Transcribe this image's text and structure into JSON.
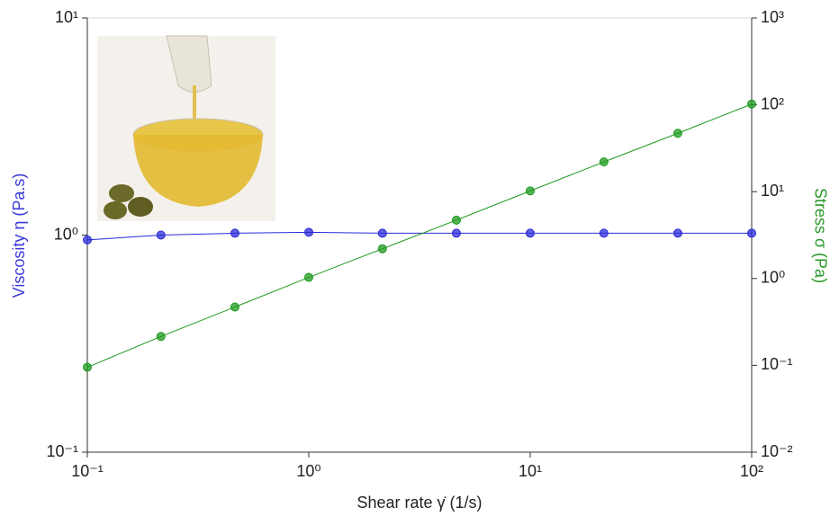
{
  "chart_data": {
    "type": "line",
    "xlabel": "Shear rate γ̇ (1/s)",
    "ylabel": "Viscosity η (Pa.s)",
    "y2label": "Stress σ (Pa)",
    "x": [
      0.1,
      0.215,
      0.464,
      1,
      2.15,
      4.64,
      10,
      21.5,
      46.4,
      100
    ],
    "series": [
      {
        "color": "#2a2ad8",
        "values": [
          0.95,
          1.0,
          1.02,
          1.03,
          1.02,
          1.02,
          1.02,
          1.02,
          1.02,
          1.02
        ]
      },
      {
        "color": "#1e9a1e",
        "axis": "y2",
        "values": [
          0.095,
          0.215,
          0.47,
          1.03,
          2.2,
          4.7,
          10.2,
          22,
          47,
          102
        ]
      }
    ],
    "xscale": "log",
    "yscale": "log",
    "xlim": [
      0.1,
      100
    ],
    "xticks": [
      {
        "value": 0.1,
        "label": "10⁻¹"
      },
      {
        "value": 1,
        "label": "10⁰"
      },
      {
        "value": 10,
        "label": "10¹"
      },
      {
        "value": 100,
        "label": "10²"
      }
    ],
    "ylim": [
      0.1,
      10
    ],
    "yticks": [
      {
        "value": 0.1,
        "label": "10⁻¹"
      },
      {
        "value": 1,
        "label": "10⁰"
      },
      {
        "value": 10,
        "label": "10¹"
      }
    ],
    "y2lim": [
      0.01,
      1000
    ],
    "y2ticks": [
      {
        "value": 0.01,
        "label": "10⁻²"
      },
      {
        "value": 0.1,
        "label": "10⁻¹"
      },
      {
        "value": 1,
        "label": "10⁰"
      },
      {
        "value": 10,
        "label": "10¹"
      },
      {
        "value": 100,
        "label": "10²"
      },
      {
        "value": 1000,
        "label": "10³"
      }
    ]
  }
}
